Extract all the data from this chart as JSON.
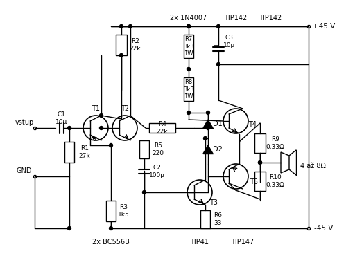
{
  "title": "",
  "bg_color": "#ffffff",
  "line_color": "#000000",
  "text_color": "#000000",
  "figsize": [
    4.99,
    3.73
  ],
  "dpi": 100,
  "labels": {
    "vstup": "vstup",
    "GND": "GND",
    "plus45": "+45 V",
    "minus45": "-45 V",
    "R1": "R1\n27k",
    "R2": "R2\n22k",
    "R3": "R3\n1k5",
    "R4": "R4\n22k",
    "R5": "R5\n220",
    "R6": "R6\n33",
    "R7": "R7\n3k3\n1W",
    "R8": "R8\n3k3\n1W",
    "R9": "R9\n0,33Ω",
    "R10": "R10\n0,33Ω",
    "C1": "C1\n10μ",
    "C2": "C2\n100μ",
    "C3": "C3\n10μ",
    "T1": "T1",
    "T2": "T2",
    "T3": "T3",
    "T4": "T4",
    "T5": "T5",
    "D1": "D1",
    "D2": "D2",
    "bc556b": "2x BC556B",
    "tip41": "TIP41",
    "tip147": "TIP147",
    "tip142": "TIP142",
    "diodes": "2x 1N4007",
    "speaker": "4 až 8Ω"
  }
}
